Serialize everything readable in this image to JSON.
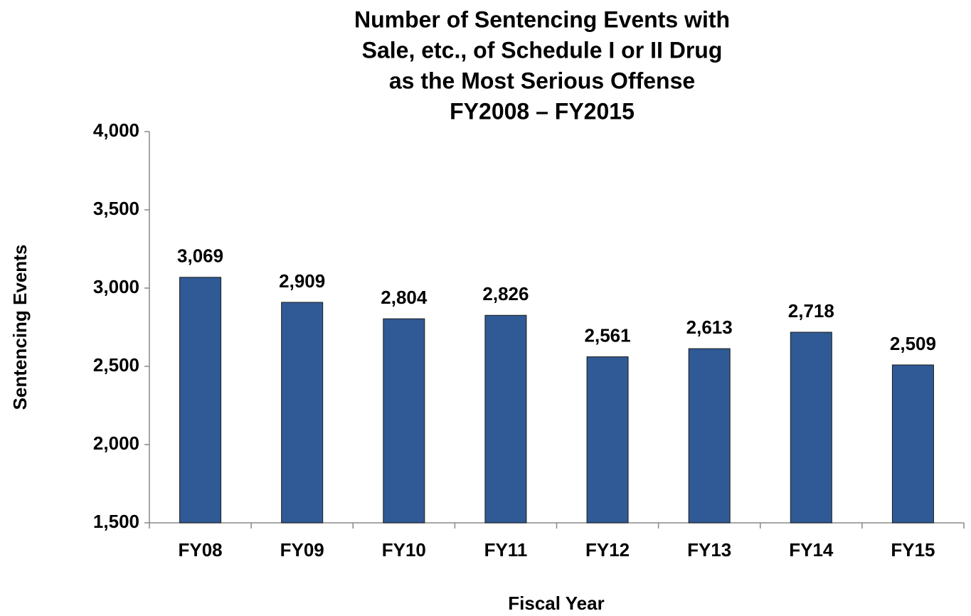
{
  "chart_data": {
    "type": "bar",
    "title": [
      "Number of Sentencing Events with",
      "Sale, etc., of Schedule I or II Drug",
      "as the Most Serious Offense",
      "FY2008 – FY2015"
    ],
    "x_label": "Fiscal Year",
    "y_label": "Sentencing Events",
    "categories": [
      "FY08",
      "FY09",
      "FY10",
      "FY11",
      "FY12",
      "FY13",
      "FY14",
      "FY15"
    ],
    "values": [
      3069,
      2909,
      2804,
      2826,
      2561,
      2613,
      2718,
      2509
    ],
    "value_labels": [
      "3,069",
      "2,909",
      "2,804",
      "2,826",
      "2,561",
      "2,613",
      "2,718",
      "2,509"
    ],
    "color": "#2f5a95",
    "ylim": [
      1500,
      4000
    ],
    "yticks": [
      {
        "value": 1500,
        "label": "1,500"
      },
      {
        "value": 2000,
        "label": "2,000"
      },
      {
        "value": 2500,
        "label": "2,500"
      },
      {
        "value": 3000,
        "label": "3,000"
      },
      {
        "value": 3500,
        "label": "3,500"
      },
      {
        "value": 4000,
        "label": "4,000"
      }
    ],
    "grid": false
  }
}
